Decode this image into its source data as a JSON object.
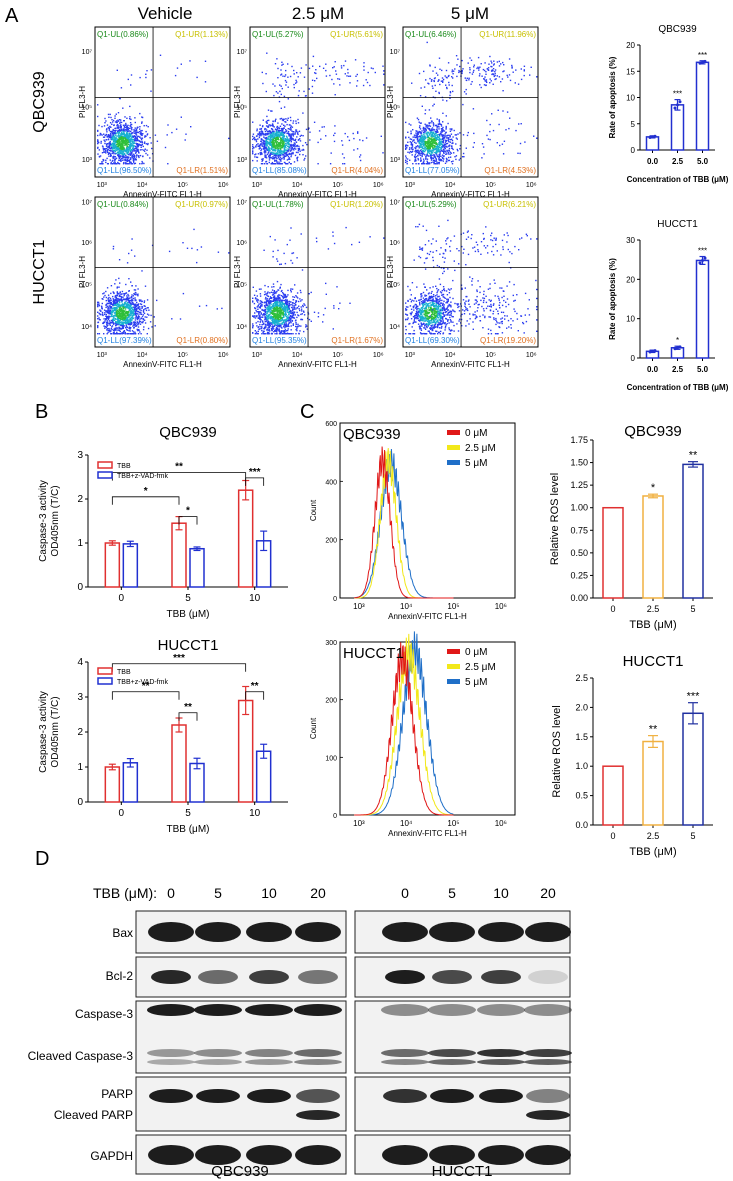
{
  "panel_labels": {
    "a": "A",
    "b": "B",
    "c": "C",
    "d": "D"
  },
  "flow_a": {
    "columns": [
      "Vehicle",
      "2.5 μM",
      "5 μM"
    ],
    "rows": [
      {
        "name": "QBC939",
        "plots": [
          {
            "UL": "Q1-UL(0.86%)",
            "UR": "Q1-UR(1.13%)",
            "LL": "Q1-LL(96.50%)",
            "LR": "Q1-LR(1.51%)"
          },
          {
            "UL": "Q1-UL(5.27%)",
            "UR": "Q1-UR(5.61%)",
            "LL": "Q1-LL(85.08%)",
            "LR": "Q1-LR(4.04%)"
          },
          {
            "UL": "Q1-UL(6.46%)",
            "UR": "Q1-UR(11.96%)",
            "LL": "Q1-LL(77.05%)",
            "LR": "Q1-LR(4.53%)"
          }
        ]
      },
      {
        "name": "HUCCT1",
        "plots": [
          {
            "UL": "Q1-UL(0.84%)",
            "UR": "Q1-UR(0.97%)",
            "LL": "Q1-LL(97.39%)",
            "LR": "Q1-LR(0.80%)"
          },
          {
            "UL": "Q1-UL(1.78%)",
            "UR": "Q1-UR(1.20%)",
            "LL": "Q1-LL(95.35%)",
            "LR": "Q1-LR(1.67%)"
          },
          {
            "UL": "Q1-UL(5.29%)",
            "UR": "Q1-UR(6.21%)",
            "LL": "Q1-LL(69.30%)",
            "LR": "Q1-LR(19.20%)"
          }
        ]
      }
    ],
    "xlabel": "AnnexinV-FITC FL1-H",
    "ylabel": "PI FL3-H",
    "ticks": [
      "10³",
      "10⁴",
      "10⁵",
      "10⁶",
      "10⁷"
    ]
  },
  "chart_data": [
    {
      "type": "bar",
      "panel": "A",
      "title": "QBC939",
      "categories": [
        "0.0",
        "2.5",
        "5.0"
      ],
      "values": [
        2.5,
        8.6,
        16.7
      ],
      "errors": [
        0.2,
        1.0,
        0.3
      ],
      "significance": [
        "",
        "***",
        "***"
      ],
      "xlabel": "Concentration of TBB (μM)",
      "ylabel": "Rate of apoptosis (%)",
      "ylim": [
        0,
        20
      ],
      "yticks": [
        "0",
        "5",
        "10",
        "15",
        "20"
      ],
      "color": "#2230d0"
    },
    {
      "type": "bar",
      "panel": "A",
      "title": "HUCCT1",
      "categories": [
        "0.0",
        "2.5",
        "5.0"
      ],
      "values": [
        1.7,
        2.6,
        24.8
      ],
      "errors": [
        0.3,
        0.4,
        1.0
      ],
      "significance": [
        "",
        "*",
        "***"
      ],
      "xlabel": "Concentration of TBB (μM)",
      "ylabel": "Rate of apoptosis (%)",
      "ylim": [
        0,
        30
      ],
      "yticks": [
        "0",
        "10",
        "20",
        "30"
      ],
      "color": "#2230d0"
    },
    {
      "type": "bar",
      "panel": "B",
      "title": "QBC939",
      "categories": [
        "0",
        "5",
        "10"
      ],
      "series": [
        {
          "name": "TBB",
          "values": [
            1.0,
            1.45,
            2.2
          ],
          "errors": [
            0.05,
            0.15,
            0.22
          ],
          "color": "#e03030"
        },
        {
          "name": "TBB+z-VAD-fmk",
          "values": [
            0.98,
            0.87,
            1.05
          ],
          "errors": [
            0.06,
            0.04,
            0.22
          ],
          "color": "#2030d0"
        }
      ],
      "significance": [
        {
          "label": "*",
          "from": [
            0,
            0
          ],
          "to": [
            1,
            0
          ]
        },
        {
          "label": "*",
          "from": [
            1,
            0
          ],
          "to": [
            1,
            1
          ]
        },
        {
          "label": "**",
          "from": [
            0,
            0
          ],
          "to": [
            2,
            0
          ]
        },
        {
          "label": "***",
          "from": [
            2,
            0
          ],
          "to": [
            2,
            1
          ]
        }
      ],
      "xlabel": "TBB (μM)",
      "ylabel": "Caspase-3 activity\nOD405nm (T/C)",
      "ylim": [
        0,
        3
      ],
      "yticks": [
        "0",
        "1",
        "2",
        "3"
      ]
    },
    {
      "type": "bar",
      "panel": "B",
      "title": "HUCCT1",
      "categories": [
        "0",
        "5",
        "10"
      ],
      "series": [
        {
          "name": "TBB",
          "values": [
            1.0,
            2.2,
            2.9
          ],
          "errors": [
            0.08,
            0.2,
            0.4
          ],
          "color": "#e03030"
        },
        {
          "name": "TBB+z-VAD-fmk",
          "values": [
            1.12,
            1.1,
            1.45
          ],
          "errors": [
            0.12,
            0.15,
            0.2
          ],
          "color": "#2030d0"
        }
      ],
      "significance": [
        {
          "label": "**",
          "from": [
            0,
            0
          ],
          "to": [
            1,
            0
          ]
        },
        {
          "label": "**",
          "from": [
            1,
            0
          ],
          "to": [
            1,
            1
          ]
        },
        {
          "label": "***",
          "from": [
            0,
            0
          ],
          "to": [
            2,
            0
          ]
        },
        {
          "label": "**",
          "from": [
            2,
            0
          ],
          "to": [
            2,
            1
          ]
        }
      ],
      "xlabel": "TBB (μM)",
      "ylabel": "Caspase-3 activity\nOD405nm (T/C)",
      "ylim": [
        0,
        4
      ],
      "yticks": [
        "0",
        "1",
        "2",
        "3",
        "4"
      ]
    },
    {
      "type": "line",
      "panel": "C",
      "title": "QBC939",
      "legend": [
        {
          "name": "0 μM",
          "color": "#e01818"
        },
        {
          "name": "2.5 μM",
          "color": "#f2e81a"
        },
        {
          "name": "5 μM",
          "color": "#1f6fc8"
        }
      ],
      "xlabel": "AnnexinV-FITC FL1-H",
      "ylabel": "Count",
      "ylim": [
        0,
        600
      ],
      "yticks": [
        "0",
        "200",
        "400",
        "600"
      ],
      "xticks": [
        "10³",
        "10⁴",
        "10⁵",
        "10⁶"
      ],
      "peaks": [
        3.5,
        3.62,
        3.68
      ],
      "widths": [
        0.16,
        0.17,
        0.22
      ],
      "heights": [
        470,
        470,
        460
      ]
    },
    {
      "type": "bar",
      "panel": "C",
      "title": "QBC939",
      "categories": [
        "0",
        "2.5",
        "5"
      ],
      "values": [
        1.0,
        1.13,
        1.48
      ],
      "errors": [
        0.0,
        0.02,
        0.03
      ],
      "colors": [
        "#e03030",
        "#f0b040",
        "#2030a0"
      ],
      "significance": [
        "",
        "*",
        "**"
      ],
      "xlabel": "TBB (μM)",
      "ylabel": "Relative ROS level",
      "ylim": [
        0,
        1.75
      ],
      "yticks": [
        "0.00",
        "0.25",
        "0.50",
        "0.75",
        "1.00",
        "1.25",
        "1.50",
        "1.75"
      ]
    },
    {
      "type": "line",
      "panel": "C",
      "title": "HUCCT1",
      "legend": [
        {
          "name": "0 μM",
          "color": "#e01818"
        },
        {
          "name": "2.5 μM",
          "color": "#f2e81a"
        },
        {
          "name": "5 μM",
          "color": "#1f6fc8"
        }
      ],
      "xlabel": "AnnexinV-FITC FL1-H",
      "ylabel": "Count",
      "ylim": [
        0,
        320
      ],
      "yticks": [
        "0",
        "100",
        "200",
        "300"
      ],
      "xticks": [
        "10³",
        "10⁴",
        "10⁵",
        "10⁶"
      ],
      "peaks": [
        3.92,
        4.05,
        4.18
      ],
      "widths": [
        0.22,
        0.24,
        0.25
      ],
      "heights": [
        290,
        300,
        305
      ]
    },
    {
      "type": "bar",
      "panel": "C",
      "title": "HUCCT1",
      "categories": [
        "0",
        "2.5",
        "5"
      ],
      "values": [
        1.0,
        1.42,
        1.9
      ],
      "errors": [
        0.0,
        0.1,
        0.18
      ],
      "colors": [
        "#e03030",
        "#f0b040",
        "#2030a0"
      ],
      "significance": [
        "",
        "**",
        "***"
      ],
      "xlabel": "TBB (μM)",
      "ylabel": "Relative ROS level",
      "ylim": [
        0,
        2.5
      ],
      "yticks": [
        "0.0",
        "0.5",
        "1.0",
        "1.5",
        "2.0",
        "2.5"
      ]
    }
  ],
  "western": {
    "tbb_label": "TBB (μM):",
    "concentrations": [
      "0",
      "5",
      "10",
      "20"
    ],
    "proteins": [
      "Bax",
      "Bcl-2",
      "Caspase-3",
      "Cleaved Caspase-3",
      "PARP",
      "Cleaved PARP",
      "GAPDH"
    ],
    "cell_lines": [
      "QBC939",
      "HUCCT1"
    ]
  }
}
